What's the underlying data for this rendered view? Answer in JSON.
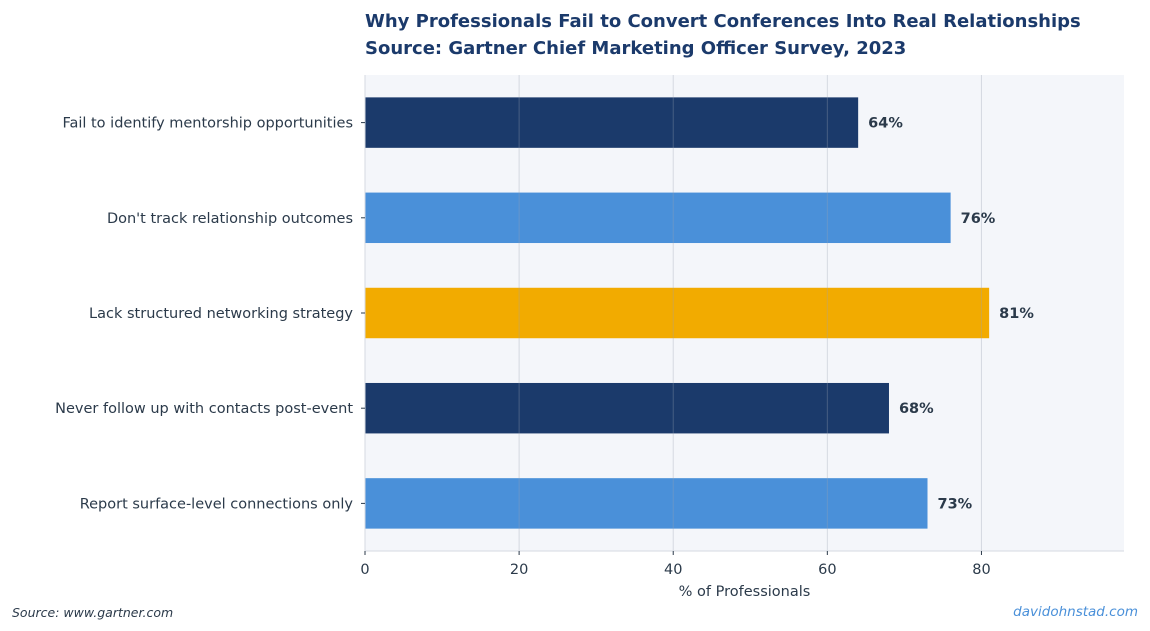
{
  "chart_data": {
    "type": "bar",
    "orientation": "horizontal",
    "title": "Why Professionals Fail to Convert Conferences Into Real Relationships",
    "subtitle": "Source: Gartner Chief Marketing Officer Survey, 2023",
    "categories": [
      "Fail to identify mentorship opportunities",
      "Don't track relationship outcomes",
      "Lack structured networking strategy",
      "Never follow up with contacts post-event",
      "Report surface-level connections only"
    ],
    "values": [
      64,
      76,
      81,
      68,
      73
    ],
    "value_labels": [
      "64%",
      "76%",
      "81%",
      "68%",
      "73%"
    ],
    "bar_colors": [
      "#1b3a6b",
      "#4a90d9",
      "#f2ab00",
      "#1b3a6b",
      "#4a90d9"
    ],
    "xlabel": "% of Professionals",
    "ylabel": "",
    "xlim": [
      0,
      98.5
    ],
    "xticks": [
      0,
      20,
      40,
      60,
      80
    ],
    "xtick_labels": [
      "0",
      "20",
      "40",
      "60",
      "80"
    ],
    "grid": "vertical",
    "legend": "none",
    "background": "#f4f6fa"
  },
  "footer": {
    "source": "Source: www.gartner.com",
    "brand": "davidohnstad.com"
  }
}
